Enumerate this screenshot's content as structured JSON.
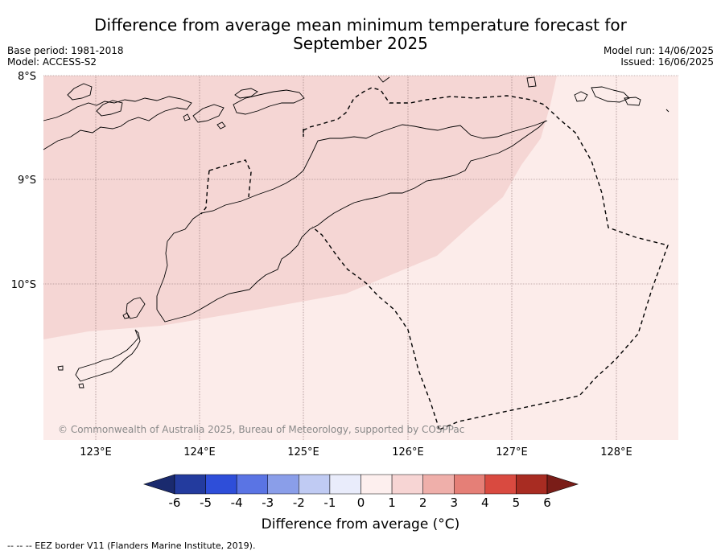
{
  "title_line1": "Difference from average mean minimum temperature forecast for",
  "title_line2": "September 2025",
  "base_period": "Base period: 1981-2018",
  "model": "Model: ACCESS-S2",
  "model_run": "Model run: 14/06/2025",
  "issued": "Issued: 16/06/2025",
  "lat_labels": [
    "8°S",
    "9°S",
    "10°S"
  ],
  "lon_labels": [
    "123°E",
    "124°E",
    "125°E",
    "126°E",
    "127°E",
    "128°E"
  ],
  "copyright": "© Commonwealth of Australia 2025, Bureau of Meteorology, supported by COSPPac",
  "colorbar": {
    "ticks": [
      "-6",
      "-5",
      "-4",
      "-3",
      "-2",
      "-1",
      "0",
      "1",
      "2",
      "3",
      "4",
      "5",
      "6"
    ],
    "colors": [
      "#233b9e",
      "#2e4ed9",
      "#5a74e4",
      "#8a9ee9",
      "#c0cbf3",
      "#e9ecfb",
      "#fdefee",
      "#f7d5d4",
      "#efafaa",
      "#e57f77",
      "#d94a40",
      "#a82c22"
    ],
    "under_color": "#1a2a6e",
    "over_color": "#7a1d18",
    "label": "Difference from average (°C)"
  },
  "footer": "--  --  -- EEZ border V11 (Flanders Marine Institute, 2019).",
  "map_colors": {
    "zone_1_2": "#f5d6d4",
    "zone_0_1": "#fcecea"
  }
}
